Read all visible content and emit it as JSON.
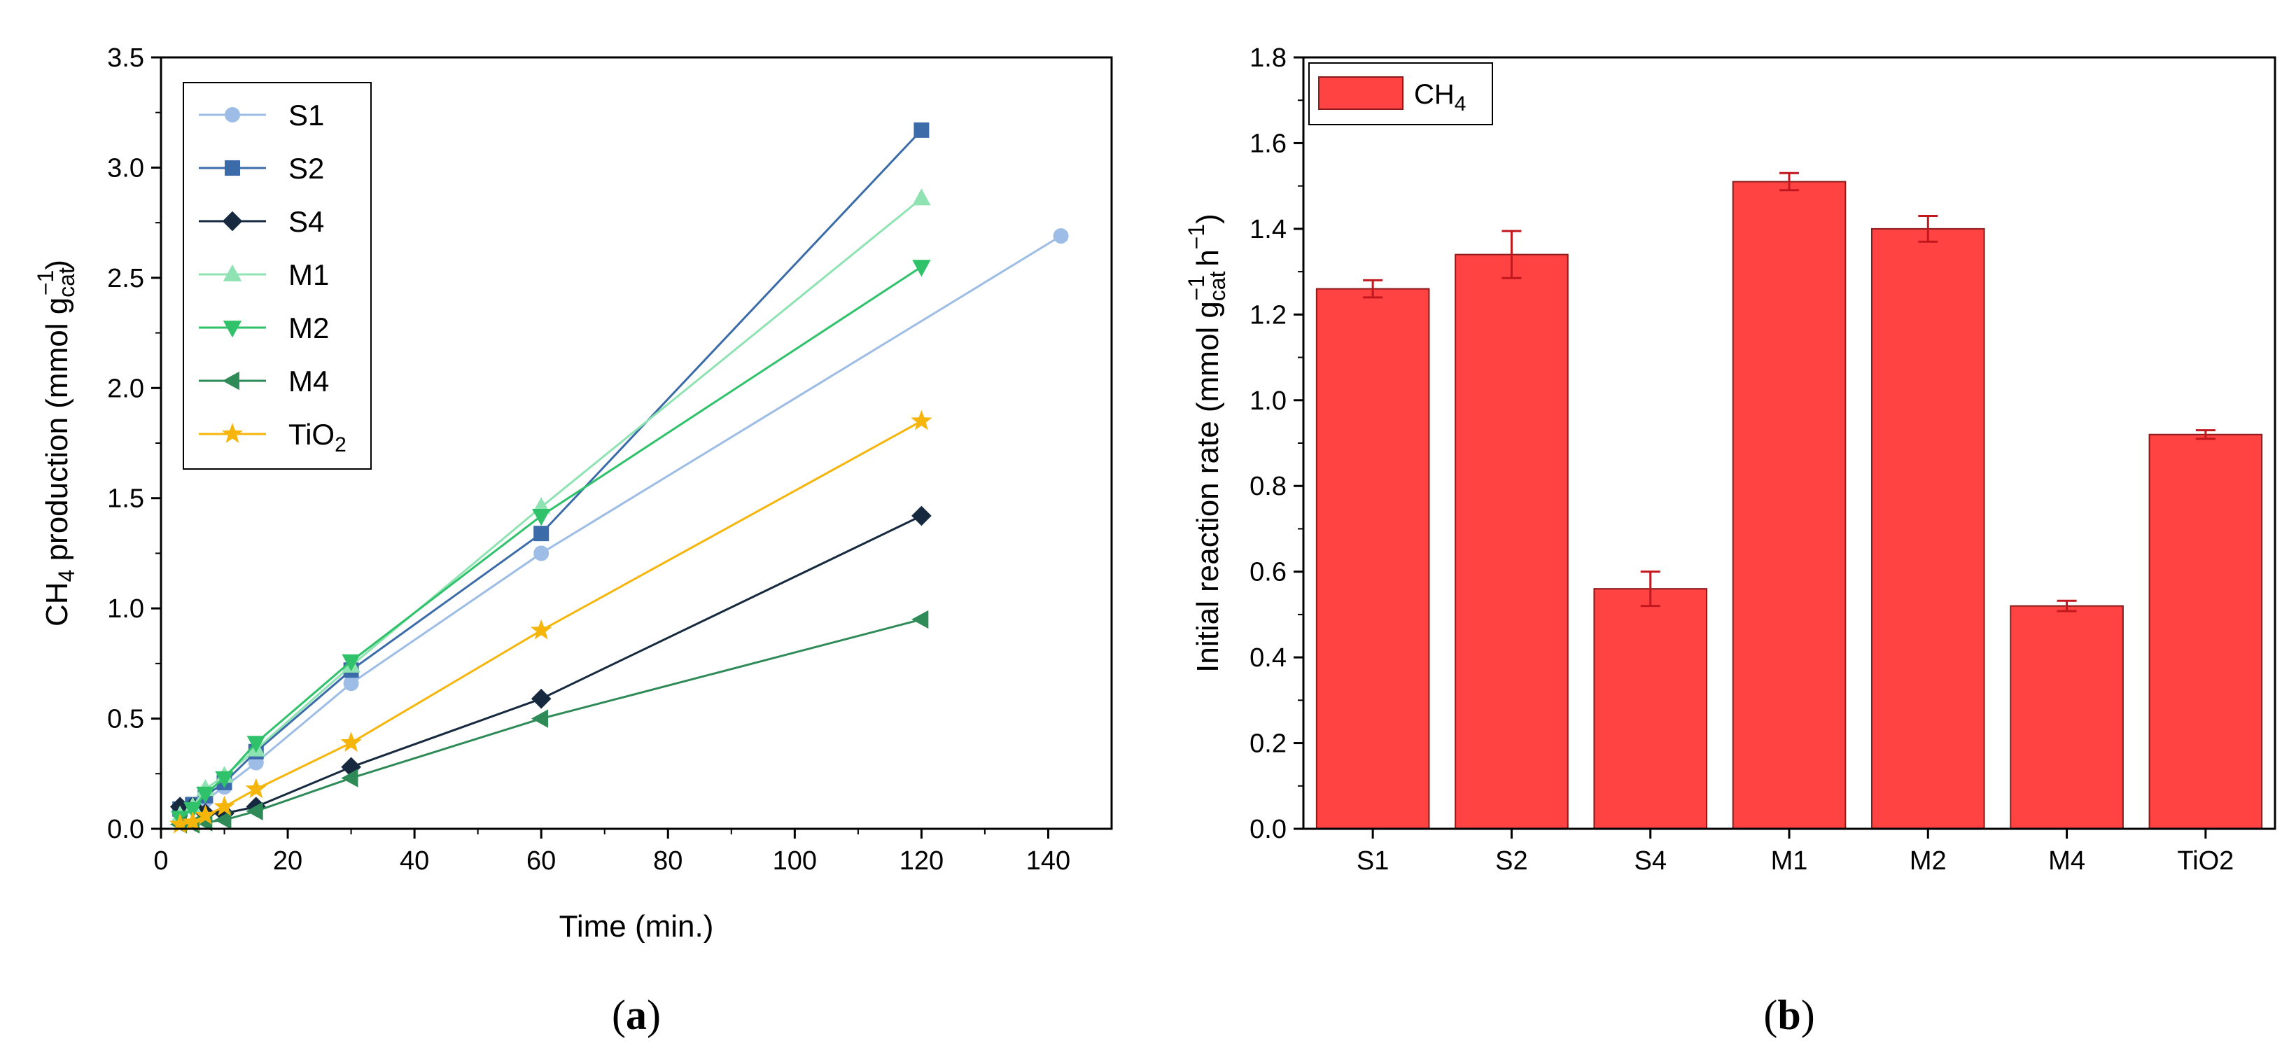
{
  "chart_data": [
    {
      "type": "line",
      "panel_label": {
        "open": "(",
        "letter": "a",
        "close": ")"
      },
      "xlabel": "Time (min.)",
      "ylabel": {
        "pre": "CH",
        "sub1": "4",
        "mid": " production (mmol g",
        "sub2": "cat",
        "sup": "−1",
        "post": ")"
      },
      "xlim": [
        0,
        150
      ],
      "ylim": [
        0,
        3.5
      ],
      "xticks": [
        "0",
        "20",
        "40",
        "60",
        "80",
        "100",
        "120",
        "140"
      ],
      "yticks": [
        "0.0",
        "0.5",
        "1.0",
        "1.5",
        "2.0",
        "2.5",
        "3.0",
        "3.5"
      ],
      "legend_position": "top-left",
      "series": [
        {
          "name": "S1",
          "marker": "circle",
          "color": "#9dbde6",
          "x": [
            3,
            5,
            7,
            10,
            15,
            30,
            60,
            142
          ],
          "y": [
            0.09,
            0.1,
            0.13,
            0.19,
            0.3,
            0.66,
            1.25,
            2.69
          ]
        },
        {
          "name": "S2",
          "marker": "square",
          "color": "#3b6ba8",
          "x": [
            3,
            5,
            7,
            10,
            15,
            30,
            60,
            120
          ],
          "y": [
            0.09,
            0.11,
            0.15,
            0.21,
            0.35,
            0.72,
            1.34,
            3.17
          ]
        },
        {
          "name": "S4",
          "marker": "diamond",
          "color": "#16293f",
          "x": [
            3,
            5,
            7,
            10,
            15,
            30,
            60,
            120
          ],
          "y": [
            0.1,
            0.1,
            0.07,
            0.07,
            0.1,
            0.28,
            0.59,
            1.42
          ]
        },
        {
          "name": "M1",
          "marker": "triangle-up",
          "color": "#8fe3b3",
          "x": [
            3,
            5,
            7,
            10,
            15,
            30,
            60,
            120
          ],
          "y": [
            0.06,
            0.1,
            0.18,
            0.24,
            0.36,
            0.74,
            1.46,
            2.86
          ]
        },
        {
          "name": "M2",
          "marker": "triangle-down",
          "color": "#2fc26a",
          "x": [
            3,
            5,
            7,
            10,
            15,
            30,
            60,
            120
          ],
          "y": [
            0.05,
            0.09,
            0.16,
            0.23,
            0.39,
            0.76,
            1.42,
            2.55
          ]
        },
        {
          "name": "M4",
          "marker": "triangle-left",
          "color": "#2e8b57",
          "x": [
            3,
            5,
            7,
            10,
            15,
            30,
            60,
            120
          ],
          "y": [
            0.02,
            0.02,
            0.03,
            0.04,
            0.08,
            0.23,
            0.5,
            0.95
          ]
        },
        {
          "name": "TiO",
          "name_sub": "2",
          "marker": "star",
          "color": "#f5b50a",
          "x": [
            3,
            5,
            7,
            10,
            15,
            30,
            60,
            120
          ],
          "y": [
            0.02,
            0.03,
            0.06,
            0.1,
            0.18,
            0.39,
            0.9,
            1.85
          ]
        }
      ]
    },
    {
      "type": "bar",
      "panel_label": {
        "open": "(",
        "letter": "b",
        "close": ")"
      },
      "categories": [
        "S1",
        "S2",
        "S4",
        "M1",
        "M2",
        "M4",
        "TiO2"
      ],
      "values": [
        1.26,
        1.34,
        0.56,
        1.51,
        1.4,
        0.52,
        0.92
      ],
      "errors": [
        0.02,
        0.055,
        0.04,
        0.02,
        0.03,
        0.012,
        0.01
      ],
      "ylim": [
        0,
        1.8
      ],
      "yticks": [
        "0.0",
        "0.2",
        "0.4",
        "0.6",
        "0.8",
        "1.0",
        "1.2",
        "1.4",
        "1.6",
        "1.8"
      ],
      "ylabel": {
        "pre": "Initial reaction rate (mmol g",
        "sub": "cat",
        "sup1": "−1",
        "mid": " h",
        "sup2": "−1",
        "post": ")"
      },
      "xlabel": "",
      "bar_color": "#ff4242",
      "error_color": "#c0181e",
      "legend_position": "top-left",
      "legend": {
        "pre": "CH",
        "sub": "4"
      }
    }
  ]
}
